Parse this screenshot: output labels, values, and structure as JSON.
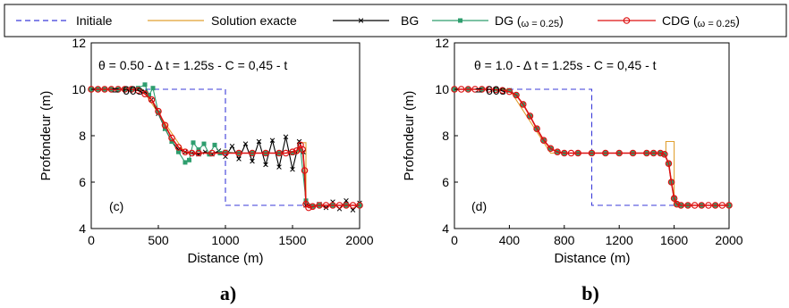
{
  "legend": {
    "items": [
      {
        "label": "Initiale",
        "color": "#3b3bd9",
        "style": "dashed",
        "marker": "none"
      },
      {
        "label": "Solution exacte",
        "color": "#e0a030",
        "style": "solid",
        "marker": "none"
      },
      {
        "label": "BG",
        "color": "#000000",
        "style": "solid",
        "marker": "x"
      },
      {
        "label": "DG (",
        "sub": "ω = 0.25",
        "close": ")",
        "color": "#2e9e6e",
        "style": "solid",
        "marker": "square"
      },
      {
        "label": "CDG (",
        "sub": "ω = 0.25",
        "close": ")",
        "color": "#dd1111",
        "style": "solid",
        "marker": "circle"
      }
    ]
  },
  "chart_data": [
    {
      "type": "line",
      "panel_tag": "(c)",
      "sublabel": "a)",
      "annotation_line1": "θ = 0.50 - Δ t = 1.25s - C = 0,45 - t",
      "annotation_line2": "= 60s",
      "xlabel": "Distance (m)",
      "ylabel": "Profondeur (m)",
      "xlim": [
        0,
        2000
      ],
      "ylim": [
        4,
        12
      ],
      "xticks": [
        0,
        500,
        1000,
        1500,
        2000
      ],
      "yticks": [
        4,
        6,
        8,
        10,
        12
      ],
      "series": [
        {
          "name": "Initiale",
          "x": [
            0,
            1000,
            1000,
            2000
          ],
          "y": [
            10,
            10,
            5,
            5
          ]
        },
        {
          "name": "Solution exacte",
          "x": [
            0,
            380,
            700,
            1540,
            1540,
            1600,
            1600,
            2000
          ],
          "y": [
            10,
            10,
            7.25,
            7.25,
            7.7,
            7.7,
            5,
            5
          ]
        },
        {
          "name": "BG",
          "x": [
            0,
            50,
            100,
            150,
            200,
            250,
            300,
            350,
            400,
            450,
            500,
            550,
            600,
            650,
            700,
            750,
            800,
            850,
            900,
            950,
            1000,
            1050,
            1100,
            1150,
            1200,
            1250,
            1300,
            1350,
            1400,
            1450,
            1500,
            1550,
            1580,
            1600,
            1650,
            1700,
            1750,
            1800,
            1850,
            1900,
            1950,
            2000
          ],
          "y": [
            10,
            10,
            10,
            10,
            10,
            10,
            10,
            10.02,
            9.9,
            9.55,
            8.95,
            8.3,
            7.75,
            7.4,
            7.3,
            7.25,
            7.2,
            7.3,
            7.2,
            7.35,
            7.1,
            7.55,
            7.0,
            7.65,
            6.9,
            7.75,
            6.75,
            7.8,
            6.65,
            7.95,
            6.55,
            7.75,
            7.3,
            5.0,
            4.95,
            5.05,
            4.9,
            5.15,
            4.85,
            5.2,
            4.8,
            5.1
          ]
        },
        {
          "name": "DG (ω = 0.25)",
          "x": [
            0,
            50,
            100,
            150,
            200,
            250,
            300,
            350,
            400,
            430,
            460,
            500,
            550,
            600,
            650,
            700,
            730,
            760,
            800,
            840,
            880,
            920,
            960,
            1000,
            1100,
            1200,
            1300,
            1400,
            1500,
            1560,
            1600,
            1650,
            1700,
            1800,
            1900,
            2000
          ],
          "y": [
            10,
            10,
            10,
            10,
            10,
            10,
            10,
            10.05,
            10.2,
            9.75,
            10.05,
            9.0,
            8.3,
            7.75,
            7.3,
            6.85,
            6.95,
            7.7,
            7.4,
            7.65,
            7.2,
            7.6,
            7.25,
            7.3,
            7.25,
            7.25,
            7.25,
            7.25,
            7.25,
            7.4,
            5.2,
            4.95,
            5.0,
            5.0,
            5.0,
            5.0
          ]
        },
        {
          "name": "CDG (ω = 0.25)",
          "x": [
            0,
            50,
            100,
            150,
            200,
            250,
            300,
            350,
            400,
            450,
            500,
            550,
            600,
            650,
            700,
            750,
            800,
            900,
            1000,
            1100,
            1200,
            1300,
            1400,
            1450,
            1500,
            1530,
            1560,
            1575,
            1590,
            1600,
            1620,
            1650,
            1700,
            1750,
            1800,
            1850,
            1900,
            1950,
            2000
          ],
          "y": [
            10,
            10,
            10,
            10,
            10,
            10,
            10,
            9.95,
            9.8,
            9.55,
            9.05,
            8.45,
            7.9,
            7.5,
            7.3,
            7.25,
            7.25,
            7.25,
            7.25,
            7.25,
            7.25,
            7.25,
            7.25,
            7.25,
            7.3,
            7.35,
            7.6,
            7.4,
            6.5,
            5.05,
            4.9,
            4.95,
            5.0,
            5.0,
            5.0,
            5.0,
            5.0,
            5.0,
            5.0
          ]
        }
      ]
    },
    {
      "type": "line",
      "panel_tag": "(d)",
      "sublabel": "b)",
      "annotation_line1": "θ = 1.0 - Δ t = 1.25s - C = 0,45 - t",
      "annotation_line2": "= 60s",
      "xlabel": "Distance (m)",
      "ylabel": "Profondeur (m)",
      "xlim": [
        0,
        2000
      ],
      "ylim": [
        4,
        12
      ],
      "xticks": [
        0,
        400,
        800,
        1200,
        1600,
        2000
      ],
      "yticks": [
        4,
        6,
        8,
        10,
        12
      ],
      "series": [
        {
          "name": "Initiale",
          "x": [
            0,
            1000,
            1000,
            2000
          ],
          "y": [
            10,
            10,
            5,
            5
          ]
        },
        {
          "name": "Solution exacte",
          "x": [
            0,
            400,
            700,
            1540,
            1540,
            1600,
            1600,
            2000
          ],
          "y": [
            10,
            10,
            7.25,
            7.25,
            7.75,
            7.75,
            5,
            5
          ]
        },
        {
          "name": "BG",
          "x": [
            0,
            100,
            200,
            300,
            400,
            450,
            500,
            550,
            600,
            650,
            700,
            750,
            800,
            900,
            1000,
            1100,
            1200,
            1300,
            1400,
            1450,
            1500,
            1530,
            1560,
            1580,
            1600,
            1620,
            1650,
            1700,
            1800,
            1900,
            2000
          ],
          "y": [
            10,
            10,
            10,
            10,
            9.95,
            9.75,
            9.35,
            8.85,
            8.3,
            7.8,
            7.45,
            7.3,
            7.25,
            7.25,
            7.25,
            7.25,
            7.25,
            7.25,
            7.25,
            7.25,
            7.25,
            7.2,
            6.8,
            6.0,
            5.3,
            5.05,
            5.0,
            5.0,
            5.0,
            5.0,
            5.0
          ]
        },
        {
          "name": "DG (ω = 0.25)",
          "x": [
            0,
            100,
            200,
            300,
            400,
            450,
            500,
            550,
            600,
            650,
            700,
            750,
            800,
            900,
            1000,
            1100,
            1200,
            1300,
            1400,
            1450,
            1500,
            1530,
            1560,
            1580,
            1600,
            1620,
            1650,
            1700,
            1800,
            1900,
            2000
          ],
          "y": [
            10,
            10,
            10,
            10,
            9.95,
            9.75,
            9.35,
            8.85,
            8.3,
            7.8,
            7.45,
            7.3,
            7.25,
            7.25,
            7.25,
            7.25,
            7.25,
            7.25,
            7.25,
            7.25,
            7.25,
            7.2,
            6.8,
            6.0,
            5.3,
            5.05,
            5.0,
            5.0,
            5.0,
            5.0,
            5.0
          ]
        },
        {
          "name": "CDG (ω = 0.25)",
          "x": [
            0,
            50,
            100,
            150,
            200,
            250,
            300,
            350,
            400,
            450,
            500,
            550,
            600,
            650,
            700,
            750,
            800,
            850,
            900,
            1000,
            1100,
            1200,
            1300,
            1400,
            1450,
            1500,
            1530,
            1560,
            1580,
            1600,
            1620,
            1650,
            1700,
            1750,
            1800,
            1850,
            1900,
            1950,
            2000
          ],
          "y": [
            10,
            10,
            10,
            10,
            10,
            10,
            9.98,
            9.95,
            9.9,
            9.75,
            9.35,
            8.85,
            8.3,
            7.8,
            7.45,
            7.3,
            7.25,
            7.25,
            7.25,
            7.25,
            7.25,
            7.25,
            7.25,
            7.25,
            7.25,
            7.25,
            7.2,
            6.8,
            6.0,
            5.3,
            5.05,
            5.0,
            5.0,
            5.0,
            5.0,
            5.0,
            5.0,
            5.0,
            5.0
          ]
        }
      ]
    }
  ]
}
